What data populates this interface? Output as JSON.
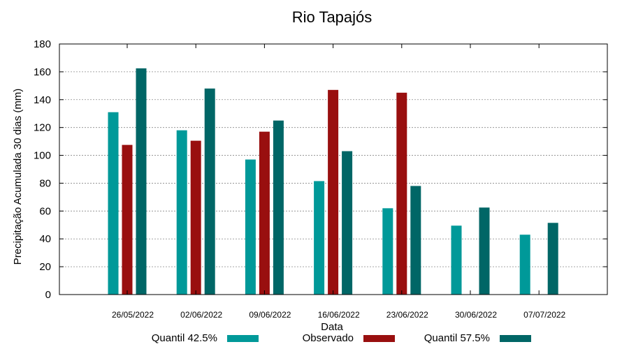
{
  "chart_data": {
    "type": "bar",
    "title": "Rio Tapajós",
    "xlabel": "Data",
    "ylabel": "Precipitação Acumulada 30 dias (mm)",
    "ylim": [
      0,
      180
    ],
    "yticks": [
      "0",
      "20",
      "40",
      "60",
      "80",
      "100",
      "120",
      "140",
      "160",
      "180"
    ],
    "grid": true,
    "legend": "bottom",
    "categories": [
      "26/05/2022",
      "02/06/2022",
      "09/06/2022",
      "16/06/2022",
      "23/06/2022",
      "30/06/2022",
      "07/07/2022"
    ],
    "series": [
      {
        "name": "Quantil 42.5%",
        "color": "#009999",
        "values": [
          131,
          118,
          97,
          81.5,
          62,
          49.5,
          43
        ]
      },
      {
        "name": "Observado",
        "color": "#990f0f",
        "values": [
          107.5,
          110.5,
          117,
          147,
          145,
          null,
          null
        ]
      },
      {
        "name": "Quantil 57.5%",
        "color": "#006666",
        "values": [
          162.5,
          148,
          125,
          103,
          78,
          62.5,
          51.5
        ]
      }
    ]
  }
}
